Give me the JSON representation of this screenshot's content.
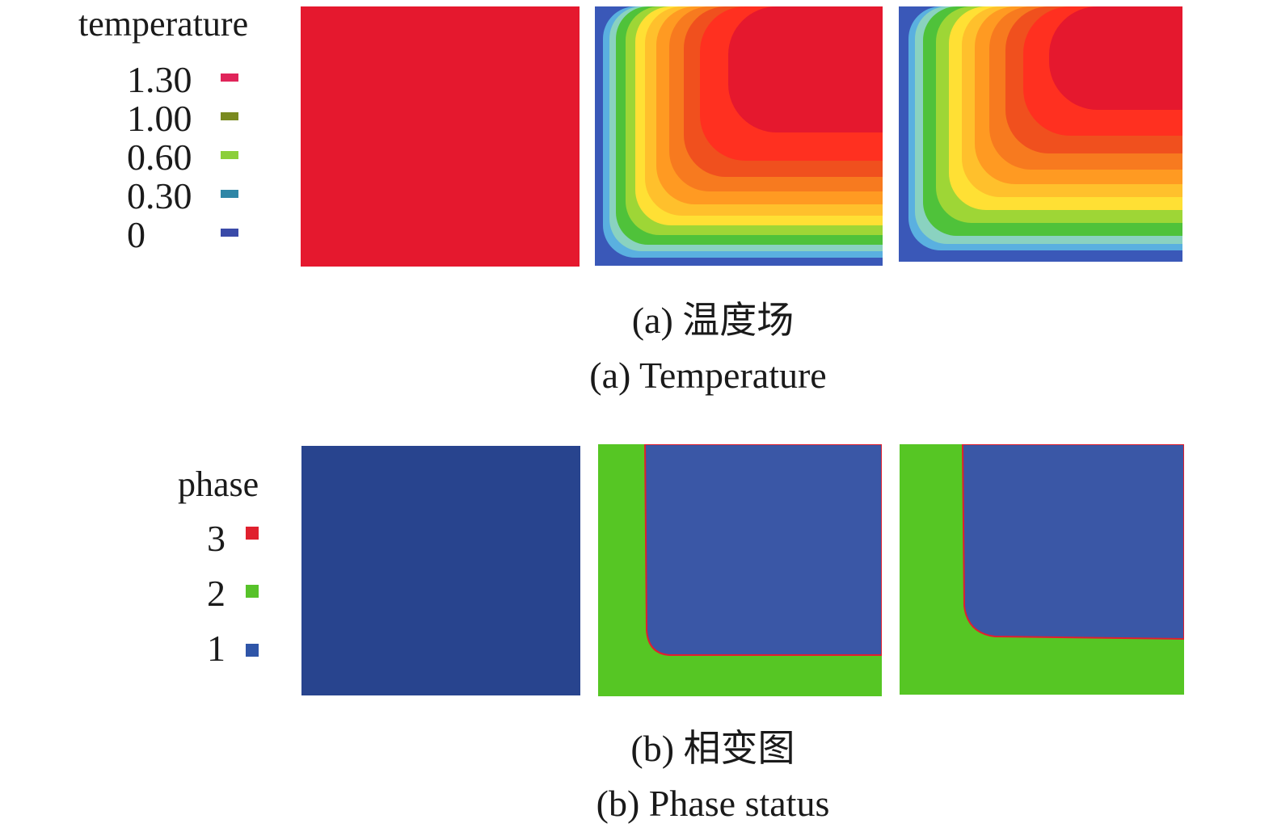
{
  "temperature_legend": {
    "title": "temperature",
    "items": [
      {
        "label": "1.30",
        "color": "#e0245a"
      },
      {
        "label": "1.00",
        "color": "#7a8a20"
      },
      {
        "label": "0.60",
        "color": "#8ccf3a"
      },
      {
        "label": "0.30",
        "color": "#2f86a6"
      },
      {
        "label": "0",
        "color": "#3a4aa8"
      }
    ]
  },
  "phase_legend": {
    "title": "phase",
    "items": [
      {
        "label": "3",
        "color": "#e0202e"
      },
      {
        "label": "2",
        "color": "#57c22a"
      },
      {
        "label": "1",
        "color": "#2f55a8"
      }
    ]
  },
  "colors": {
    "temp_uniform": "#e5182e",
    "phase1_initial": "#28448e",
    "phase1": "#3a57a6",
    "phase2": "#56c624",
    "phase3": "#e0202e"
  },
  "captions": {
    "a_cn": "(a) 温度场",
    "a_en": "(a) Temperature",
    "b_cn": "(b) 相变图",
    "b_en": "(b) Phase status"
  }
}
